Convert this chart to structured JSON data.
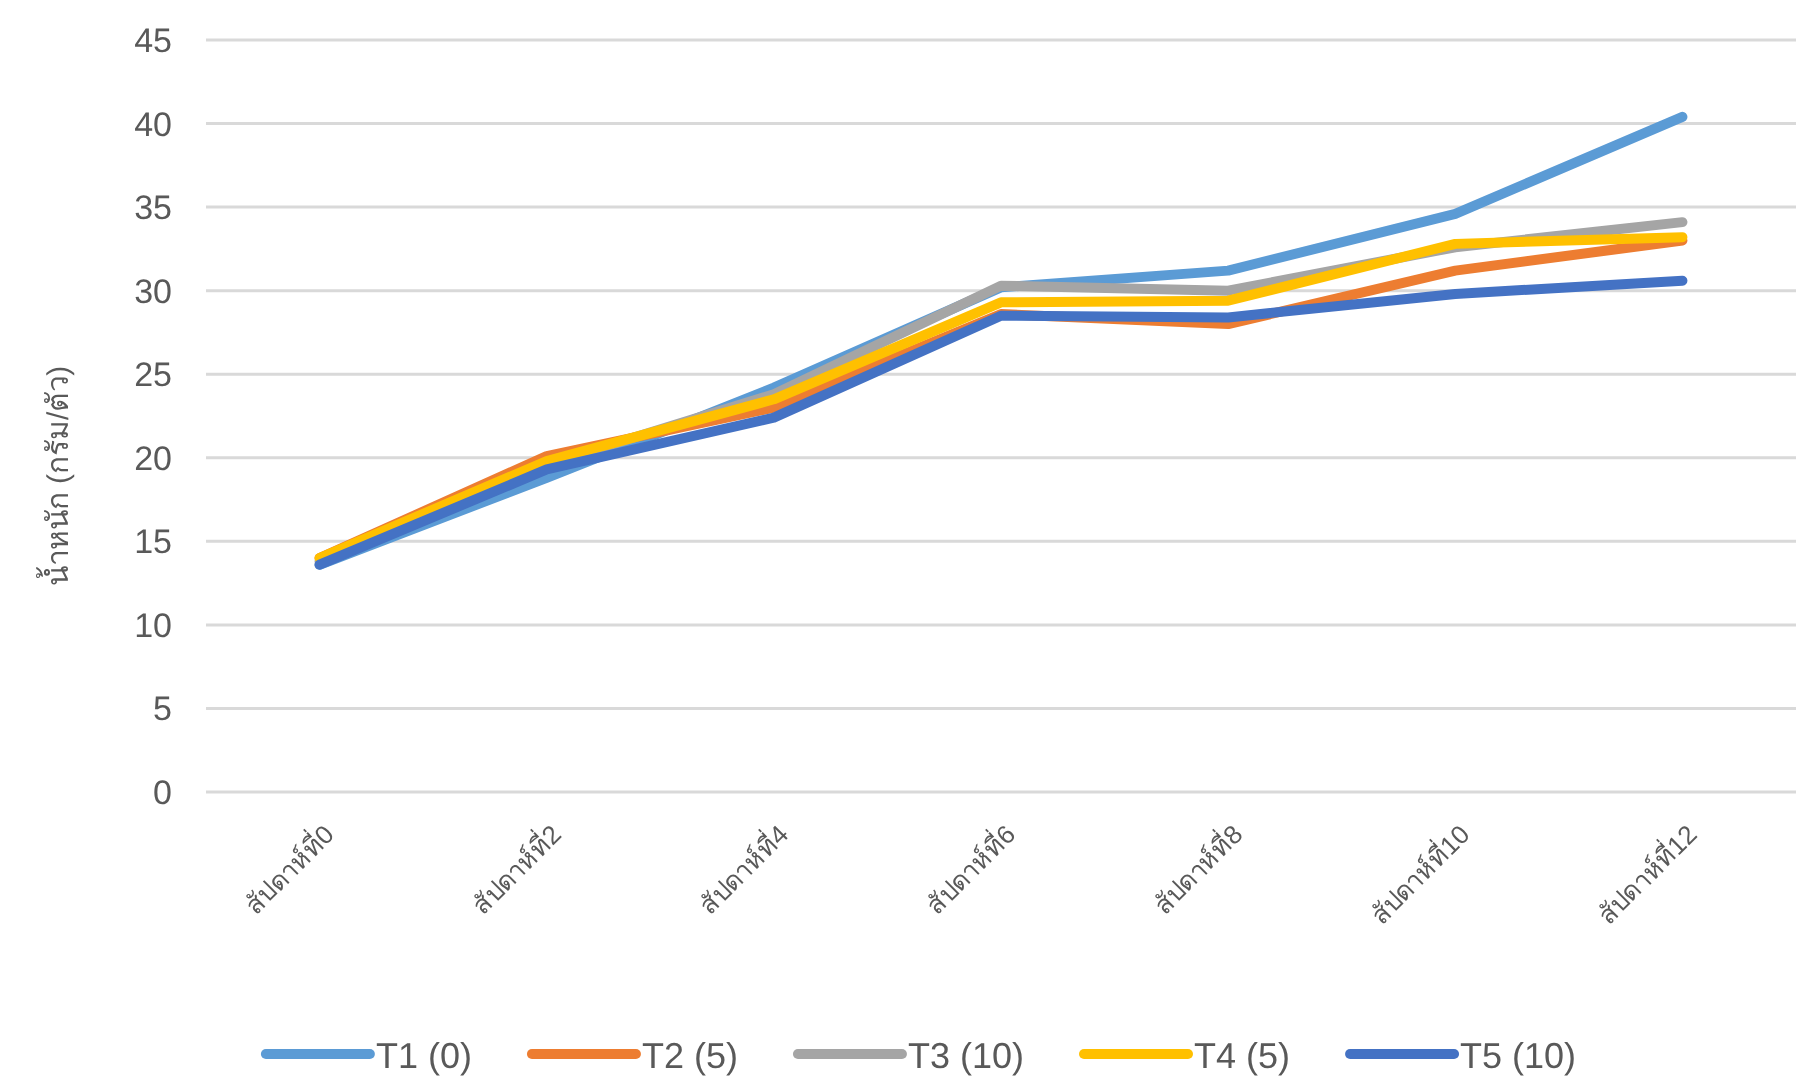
{
  "chart_data": {
    "type": "line",
    "ylabel": "น้ำหนัก (กรัม/ตัว)",
    "categories": [
      "สัปดาห์ที่0",
      "สัปดาห์ที่2",
      "สัปดาห์ที่4",
      "สัปดาห์ที่6",
      "สัปดาห์ที่8",
      "สัปดาห์ที่10",
      "สัปดาห์ที่12"
    ],
    "ylim": [
      0,
      45
    ],
    "yticks": [
      0,
      5,
      10,
      15,
      20,
      25,
      30,
      35,
      40,
      45
    ],
    "grid": "y",
    "legend": "bottom",
    "marker": "none",
    "line_style": "solid",
    "series": [
      {
        "name": "T1 (0)",
        "color": "#5b9bd5",
        "values": [
          13.6,
          18.8,
          24.2,
          30.2,
          31.2,
          34.6,
          40.4
        ]
      },
      {
        "name": "T2 (5)",
        "color": "#ed7d31",
        "values": [
          14.0,
          20.1,
          23.0,
          28.6,
          28.0,
          31.2,
          33.0
        ]
      },
      {
        "name": "T3 (10)",
        "color": "#a5a5a5",
        "values": [
          13.8,
          19.6,
          23.8,
          30.3,
          30.0,
          32.6,
          34.1
        ]
      },
      {
        "name": "T4 (5)",
        "color": "#ffc000",
        "values": [
          14.0,
          19.8,
          23.5,
          29.3,
          29.4,
          32.8,
          33.2
        ]
      },
      {
        "name": "T5 (10)",
        "color": "#4472c4",
        "values": [
          13.6,
          19.3,
          22.4,
          28.5,
          28.4,
          29.8,
          30.6
        ]
      }
    ]
  }
}
